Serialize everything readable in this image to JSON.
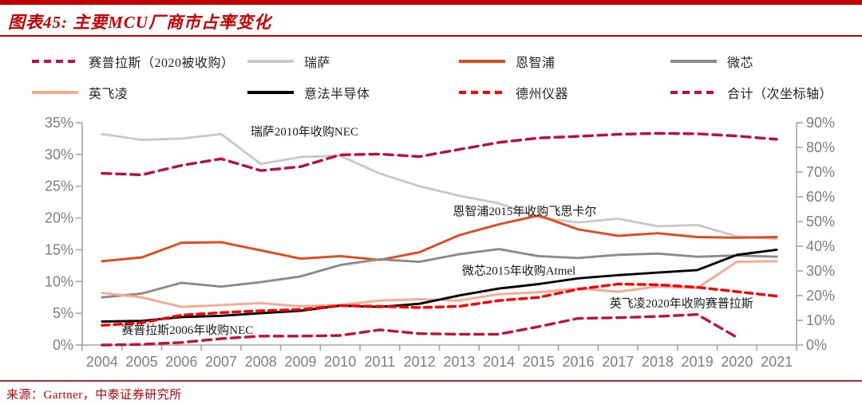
{
  "title": {
    "label": "图表45: 主要MCU厂商市占率变化"
  },
  "footer": {
    "source": "来源：Gartner，中泰证券研究所"
  },
  "colors": {
    "accent_red": "#c00000",
    "cypress": "#c01238",
    "renesas": "#c9c9c9",
    "nxp": "#e2491b",
    "microchip": "#8a8a8a",
    "infineon": "#f7a992",
    "st": "#000000",
    "ti": "#ff0000",
    "total": "#c00a45",
    "axis_line": "#a6a6a6",
    "axis_text": "#7f7f7f",
    "annotation_text": "#1a1a1a"
  },
  "legend": [
    {
      "id": "cypress",
      "label": "赛普拉斯（2020被收购）",
      "dash": true
    },
    {
      "id": "renesas",
      "label": "瑞萨",
      "dash": false
    },
    {
      "id": "nxp",
      "label": "恩智浦",
      "dash": false
    },
    {
      "id": "microchip",
      "label": "微芯",
      "dash": false
    },
    {
      "id": "infineon",
      "label": "英飞凌",
      "dash": false
    },
    {
      "id": "st",
      "label": "意法半导体",
      "dash": false
    },
    {
      "id": "ti",
      "label": "德州仪器",
      "dash": true
    },
    {
      "id": "total",
      "label": "合计（次坐标轴）",
      "dash": true
    }
  ],
  "chart_data": {
    "type": "line",
    "x": [
      2004,
      2005,
      2006,
      2007,
      2008,
      2009,
      2010,
      2011,
      2012,
      2013,
      2014,
      2015,
      2016,
      2017,
      2018,
      2019,
      2020,
      2021
    ],
    "left_axis": {
      "min": 0,
      "max": 35,
      "step": 5,
      "tick_labels": [
        "0%",
        "5%",
        "10%",
        "15%",
        "20%",
        "25%",
        "30%",
        "35%"
      ]
    },
    "right_axis": {
      "min": 0,
      "max": 90,
      "step": 10,
      "tick_labels": [
        "0%",
        "10%",
        "20%",
        "30%",
        "40%",
        "50%",
        "60%",
        "70%",
        "80%",
        "90%"
      ]
    },
    "grid": false,
    "legend_position": "top",
    "series": [
      {
        "id": "cypress",
        "name": "赛普拉斯（2020被收购）",
        "axis": "left",
        "dash": true,
        "values": [
          0.0,
          0.1,
          0.4,
          1.0,
          1.4,
          1.4,
          1.5,
          2.4,
          1.8,
          1.7,
          1.7,
          2.9,
          4.2,
          4.3,
          4.5,
          4.8,
          1.2,
          null
        ]
      },
      {
        "id": "renesas",
        "name": "瑞萨",
        "axis": "left",
        "dash": false,
        "values": [
          33.2,
          32.3,
          32.5,
          33.2,
          28.5,
          29.6,
          29.8,
          27.0,
          25.0,
          23.5,
          22.3,
          20.1,
          19.3,
          19.9,
          18.7,
          18.9,
          17.1,
          16.7
        ]
      },
      {
        "id": "nxp",
        "name": "恩智浦",
        "axis": "left",
        "dash": false,
        "values": [
          13.2,
          13.8,
          16.1,
          16.2,
          14.9,
          13.6,
          14.0,
          13.4,
          14.6,
          17.3,
          19.0,
          20.4,
          18.2,
          17.2,
          17.6,
          17.0,
          16.9,
          17.0
        ]
      },
      {
        "id": "microchip",
        "name": "微芯",
        "axis": "left",
        "dash": false,
        "values": [
          7.5,
          8.1,
          9.8,
          9.2,
          9.9,
          10.8,
          12.6,
          13.5,
          13.1,
          14.3,
          15.1,
          14.0,
          13.7,
          14.2,
          14.4,
          13.9,
          14.1,
          13.9
        ]
      },
      {
        "id": "infineon",
        "name": "英飞凌",
        "axis": "left",
        "dash": false,
        "values": [
          8.2,
          7.5,
          6.0,
          6.3,
          6.6,
          6.1,
          6.3,
          7.0,
          7.2,
          7.0,
          8.0,
          8.3,
          8.9,
          8.4,
          9.2,
          9.0,
          13.1,
          13.2
        ]
      },
      {
        "id": "st",
        "name": "意法半导体",
        "axis": "left",
        "dash": false,
        "values": [
          3.7,
          3.8,
          4.4,
          4.6,
          5.0,
          5.4,
          6.2,
          6.0,
          6.5,
          7.8,
          8.9,
          9.6,
          10.5,
          11.0,
          11.4,
          11.8,
          14.2,
          15.0
        ]
      },
      {
        "id": "ti",
        "name": "德州仪器",
        "axis": "left",
        "dash": true,
        "values": [
          3.1,
          3.5,
          4.7,
          5.1,
          5.4,
          5.6,
          6.2,
          6.1,
          5.9,
          6.1,
          7.0,
          7.5,
          8.8,
          9.6,
          9.5,
          9.1,
          8.4,
          7.7
        ]
      },
      {
        "id": "total",
        "name": "合计（次坐标轴）",
        "axis": "right",
        "dash": true,
        "values": [
          69.5,
          68.9,
          72.7,
          75.4,
          70.6,
          72.2,
          77.0,
          77.3,
          76.3,
          79.2,
          82.0,
          83.8,
          84.5,
          85.3,
          85.7,
          85.5,
          84.6,
          83.3
        ]
      }
    ],
    "annotations": [
      {
        "id": "renesas-nec",
        "text": "瑞萨2010年收购NEC",
        "year": 2009.1,
        "value": 33.6
      },
      {
        "id": "nxp-freescale",
        "text": "恩智浦2015年收购飞思卡尔",
        "year": 2014.65,
        "value": 21.1
      },
      {
        "id": "microchip-atmel",
        "text": "微芯2015年收购Atmel",
        "year": 2014.5,
        "value": 11.7
      },
      {
        "id": "infineon-cypress",
        "text": "英飞凌2020年收购赛普拉斯",
        "year": 2018.6,
        "value": 6.6
      },
      {
        "id": "cypress-nec",
        "text": "赛普拉斯2006年收购NEC",
        "year": 2006.15,
        "value": 2.4
      }
    ]
  }
}
